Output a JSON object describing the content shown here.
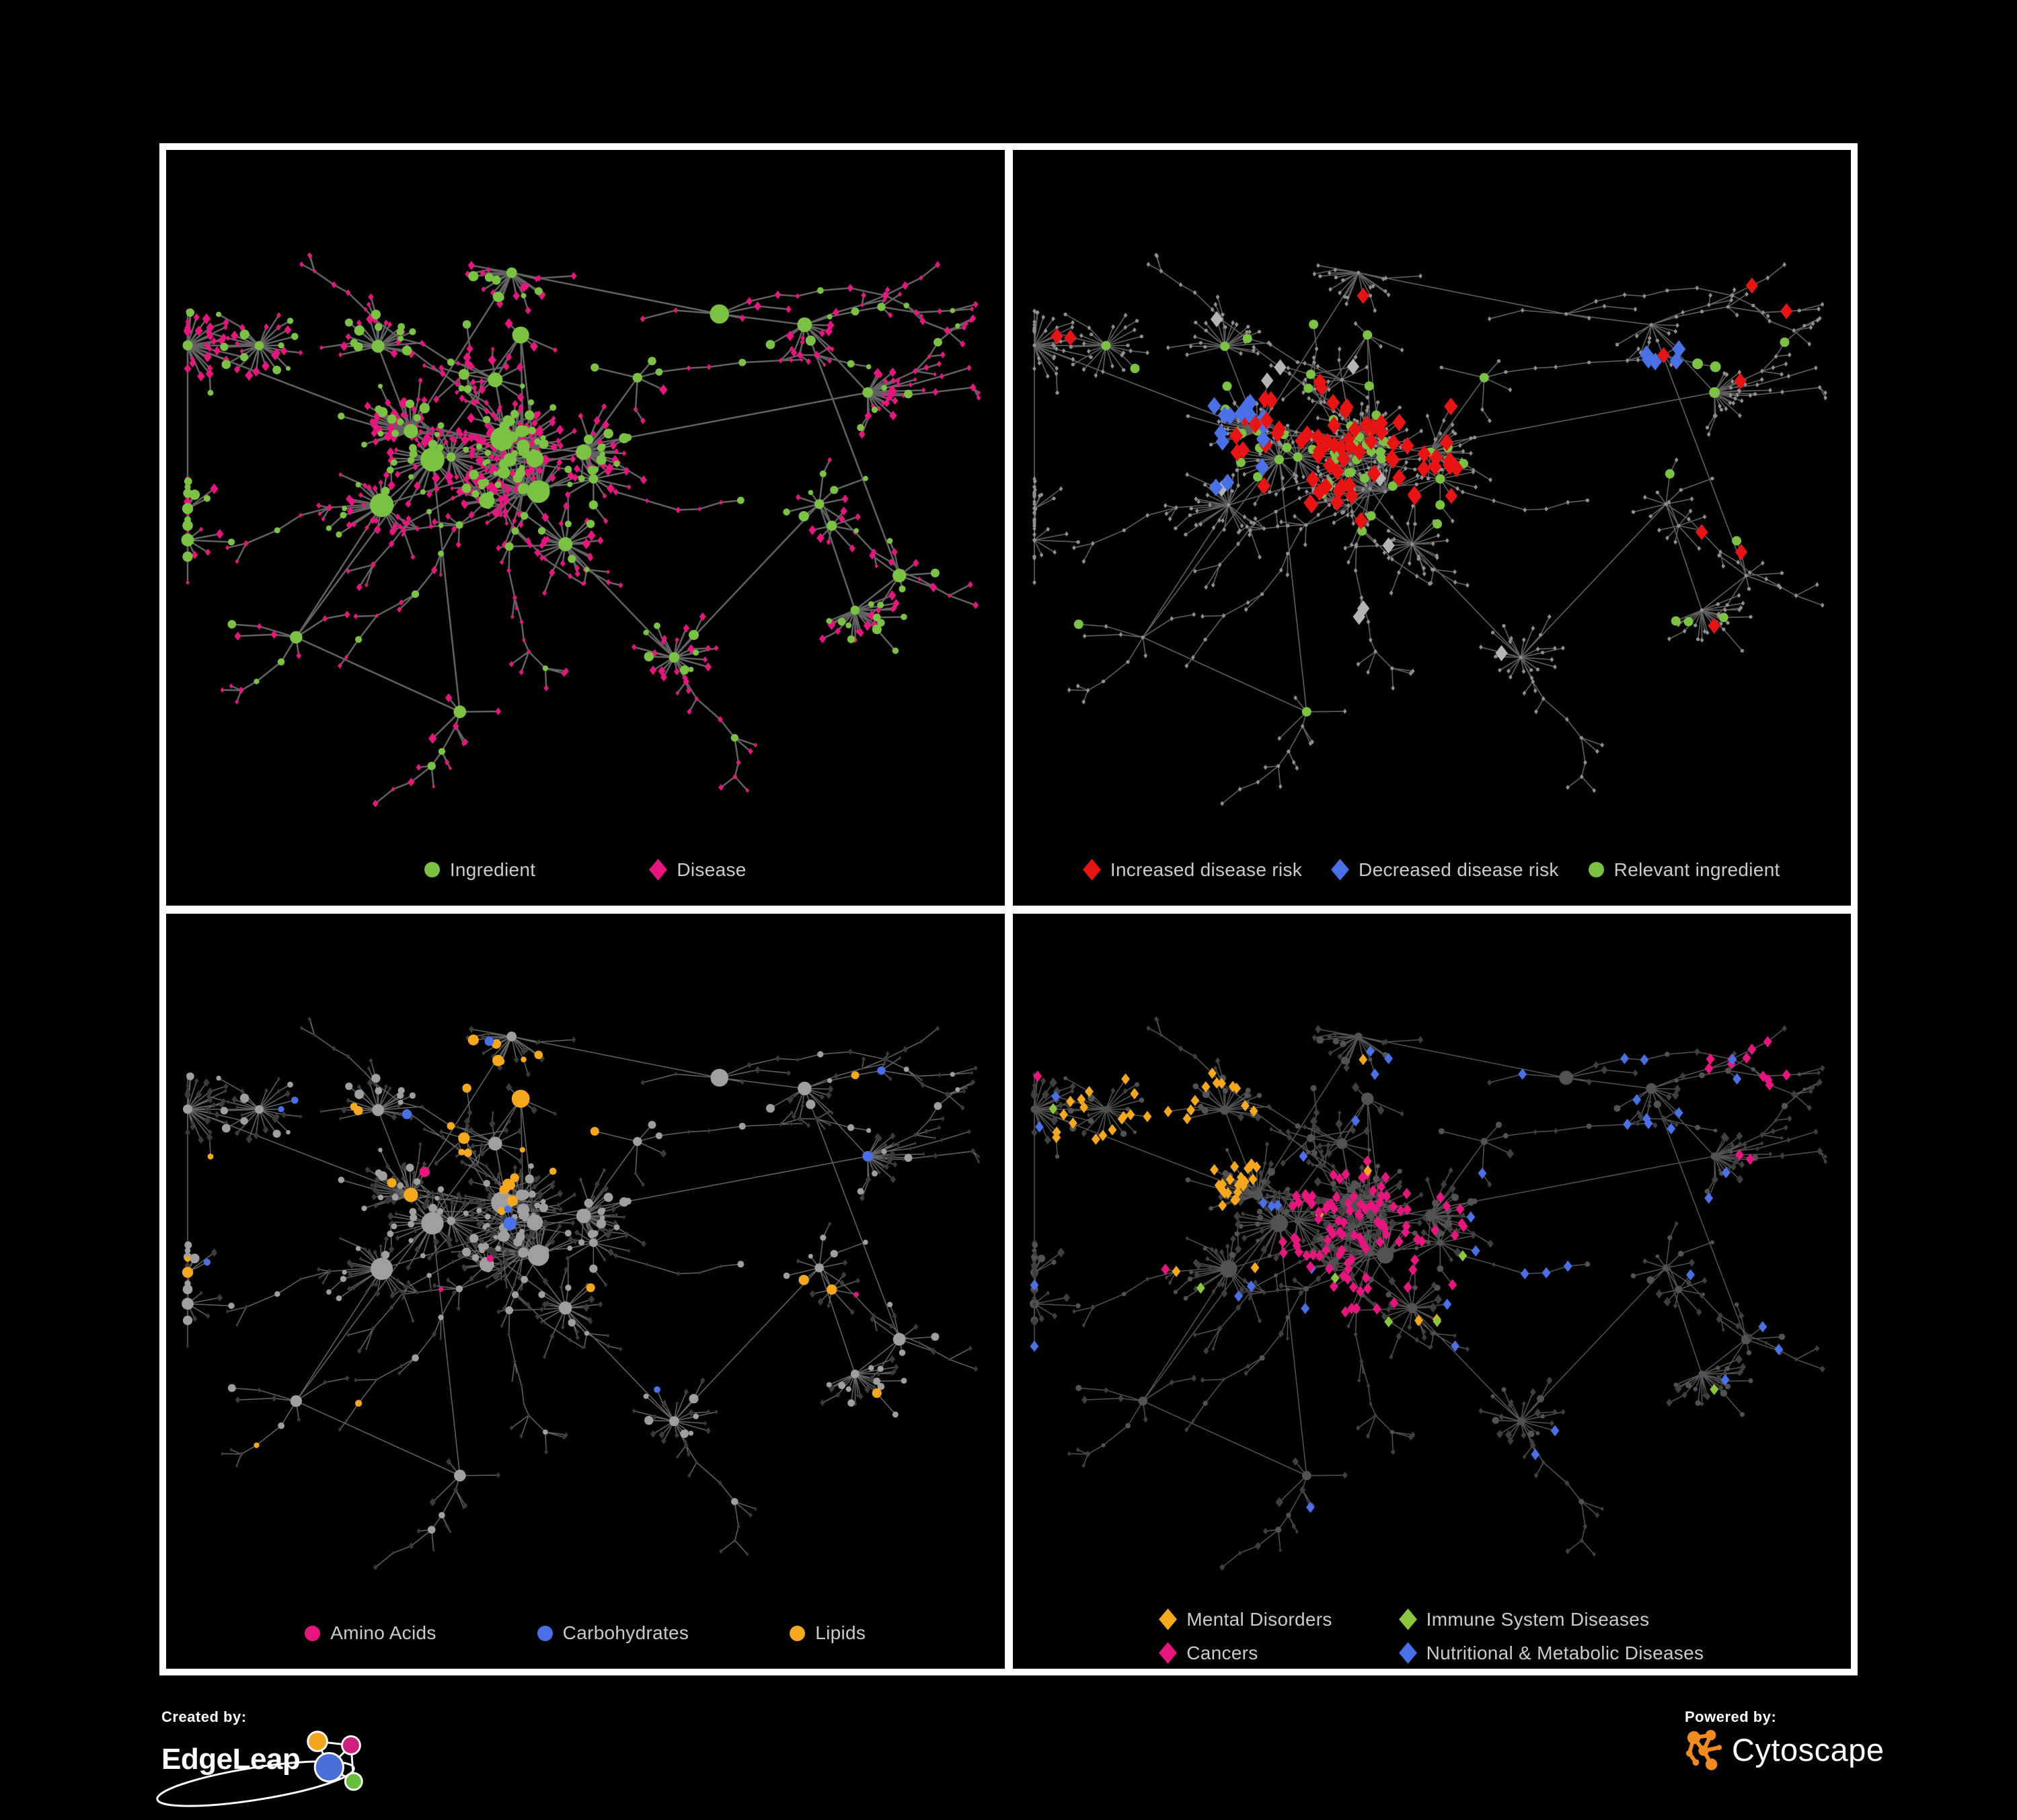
{
  "branding": {
    "created_by_label": "Created by:",
    "edgeleap_name": "EdgeLeap",
    "powered_by_label": "Powered by:",
    "cytoscape_name": "Cytoscape",
    "edgeleap_logo_colors": {
      "blue": "#4a6fd8",
      "orange": "#f2a71f",
      "pink": "#cf1f7e",
      "green": "#66bf3a"
    },
    "cytoscape_logo_color": "#ef8c1d"
  },
  "chart_data": {
    "type": "network",
    "title": "",
    "description": "Four coordinated views of the same food ingredient / disease association network rendered on a black background. Top-left: node types (green circle = Ingredient, pink diamond = Disease). Top-right: disease-risk overlay (red diamond = increased risk, blue diamond = decreased risk, gray diamond = neutral, green circle = relevant ingredient; all other nodes tiny gray). Bottom-left: nutrient classes of ingredients (pink = Amino Acids, blue = Carbohydrates, orange = Lipids, gray = other; diseases dark). Bottom-right: disease categories (orange = Mental Disorders, green = Immune System Diseases, pink = Cancers, blue = Nutritional & Metabolic Diseases; other nodes dark gray).",
    "background": "#000000",
    "node_count_estimate": 850,
    "layout": {
      "seed": 1337,
      "hubs": 40,
      "max_leaves": 24,
      "leaf_ingredient_prob": 0.24,
      "extra_hub_links": 10,
      "tendrils": 28
    },
    "panels": [
      {
        "name": "ingredient-disease-network",
        "legend_layout": "row",
        "legend_gap": 170,
        "legend": [
          {
            "label": "Ingredient",
            "shape": "circle",
            "color": "#7cc242"
          },
          {
            "label": "Disease",
            "shape": "diamond",
            "color": "#e9157e"
          }
        ],
        "edge_style": {
          "color": "#6b6b6b",
          "width": 2.5,
          "opacity": 0.92
        },
        "style_seed": 11,
        "node_rules": [
          {
            "type": "ingredient",
            "color": "#7cc242",
            "shape": "circle",
            "size": 7.5,
            "scaleBySize": true,
            "layer": 2
          },
          {
            "type": "disease",
            "color": "#e9157e",
            "shape": "diamond",
            "size": 6.5,
            "scaleBySize": true,
            "layer": 1
          }
        ]
      },
      {
        "name": "disease-risk-network",
        "legend_layout": "row",
        "legend_gap": 44,
        "legend": [
          {
            "label": "Increased disease risk",
            "shape": "diamond",
            "color": "#e81414"
          },
          {
            "label": "Decreased disease risk",
            "shape": "diamond",
            "color": "#4970e6"
          },
          {
            "label": "Relevant ingredient",
            "shape": "circle",
            "color": "#7cc242"
          }
        ],
        "edge_style": {
          "color": "#707070",
          "width": 1.6,
          "opacity": 0.85
        },
        "style_seed": 22,
        "node_rules": [
          {
            "type": "ingredient",
            "region": {
              "x": 0.81,
              "y": 0.33,
              "r": 0.05
            },
            "color": "#7cc242",
            "shape": "circle",
            "size": 8,
            "layer": 3
          },
          {
            "type": "disease",
            "region": {
              "x": 0.8,
              "y": 0.33,
              "r": 0.055
            },
            "prob": 0.5,
            "color": "#4970e6",
            "shape": "diamond",
            "size": 11,
            "layer": 3
          },
          {
            "type": "disease",
            "region": {
              "x": 0.22,
              "y": 0.42,
              "r": 0.08
            },
            "prob": 0.35,
            "color": "#4970e6",
            "shape": "diamond",
            "size": 11,
            "layer": 3
          },
          {
            "type": "disease",
            "region": {
              "x": 0.4,
              "y": 0.4,
              "r": 0.15
            },
            "prob": 0.3,
            "color": "#e81414",
            "shape": "diamond",
            "size": 11,
            "layer": 3
          },
          {
            "type": "disease",
            "region": {
              "x": 0.45,
              "y": 0.45,
              "r": 0.33
            },
            "prob": 0.025,
            "color": "#b5b5b5",
            "shape": "diamond",
            "size": 10,
            "layer": 2
          },
          {
            "type": "disease",
            "prob": 0.018,
            "color": "#e81414",
            "shape": "diamond",
            "size": 10,
            "layer": 3
          },
          {
            "type": "ingredient",
            "region": {
              "x": 0.38,
              "y": 0.4,
              "r": 0.2
            },
            "prob": 0.4,
            "color": "#7cc242",
            "shape": "circle",
            "size": 7,
            "layer": 2
          },
          {
            "type": "ingredient",
            "prob": 0.06,
            "color": "#7cc242",
            "shape": "circle",
            "size": 7,
            "layer": 2
          },
          {
            "type": "ingredient",
            "color": "#8f8f8f",
            "shape": "circle",
            "size": 2.7,
            "layer": 1
          },
          {
            "type": "disease",
            "color": "#8f8f8f",
            "shape": "diamond",
            "size": 3.1,
            "layer": 1
          }
        ]
      },
      {
        "name": "nutrient-class-network",
        "legend_layout": "row",
        "legend_gap": 150,
        "legend": [
          {
            "label": "Amino Acids",
            "shape": "circle",
            "color": "#e9157e"
          },
          {
            "label": "Carbohydrates",
            "shape": "circle",
            "color": "#4970e6"
          },
          {
            "label": "Lipids",
            "shape": "circle",
            "color": "#f5a81c"
          }
        ],
        "edge_style": {
          "color": "#9a9a9a",
          "width": 1.5,
          "opacity": 0.65
        },
        "style_seed": 33,
        "node_rules": [
          {
            "type": "disease",
            "color": "#3b3b3b",
            "shape": "diamond",
            "size": 5,
            "scaleBySize": true,
            "layer": 1
          },
          {
            "type": "ingredient",
            "region": {
              "x": 0.44,
              "y": 0.27,
              "r": 0.13
            },
            "prob": 0.75,
            "color": "#f5a81c",
            "shape": "circle",
            "size": 8,
            "scaleBySize": true,
            "layer": 3
          },
          {
            "type": "ingredient",
            "region": {
              "x": 0.44,
              "y": 0.27,
              "r": 0.13
            },
            "prob": 0.5,
            "color": "#4970e6",
            "shape": "circle",
            "size": 8,
            "scaleBySize": true,
            "layer": 3
          },
          {
            "type": "ingredient",
            "region": {
              "x": 0.55,
              "y": 0.55,
              "r": 0.05
            },
            "prob": 0.85,
            "color": "#f5a81c",
            "shape": "circle",
            "size": 8,
            "scaleBySize": true,
            "layer": 3
          },
          {
            "type": "ingredient",
            "prob": 0.1,
            "color": "#f5a81c",
            "shape": "circle",
            "size": 7.5,
            "scaleBySize": true,
            "layer": 3
          },
          {
            "type": "ingredient",
            "prob": 0.055,
            "color": "#e9157e",
            "shape": "circle",
            "size": 7.5,
            "scaleBySize": true,
            "layer": 3
          },
          {
            "type": "ingredient",
            "prob": 0.035,
            "color": "#4970e6",
            "shape": "circle",
            "size": 7.5,
            "scaleBySize": true,
            "layer": 3
          },
          {
            "type": "ingredient",
            "color": "#9f9f9f",
            "shape": "circle",
            "size": 7,
            "scaleBySize": true,
            "layer": 2
          }
        ]
      },
      {
        "name": "disease-category-network",
        "legend_layout": "grid",
        "legend_col_gap": 100,
        "legend_row_gap": 18,
        "legend": [
          {
            "label": "Mental Disorders",
            "shape": "diamond",
            "color": "#f5a81c"
          },
          {
            "label": "Immune System Diseases",
            "shape": "diamond",
            "color": "#8cc63e"
          },
          {
            "label": "Cancers",
            "shape": "diamond",
            "color": "#e9157e"
          },
          {
            "label": "Nutritional & Metabolic Diseases",
            "shape": "diamond",
            "color": "#4970e6"
          }
        ],
        "edge_style": {
          "color": "#8a8a8a",
          "width": 1.5,
          "opacity": 0.6
        },
        "style_seed": 44,
        "node_rules": [
          {
            "type": "disease",
            "region": {
              "x": 0.16,
              "y": 0.33,
              "r": 0.13
            },
            "prob": 0.8,
            "color": "#f5a81c",
            "shape": "diamond",
            "size": 7,
            "layer": 2
          },
          {
            "type": "disease",
            "region": {
              "x": 0.43,
              "y": 0.47,
              "r": 0.12
            },
            "prob": 0.45,
            "color": "#e9157e",
            "shape": "diamond",
            "size": 7,
            "layer": 2
          },
          {
            "type": "disease",
            "region": {
              "x": 0.9,
              "y": 0.2,
              "r": 0.06
            },
            "prob": 0.7,
            "color": "#e9157e",
            "shape": "diamond",
            "size": 7,
            "layer": 2
          },
          {
            "type": "disease",
            "region": {
              "x": 0.6,
              "y": 0.56,
              "r": 0.09
            },
            "prob": 0.6,
            "color": "#4970e6",
            "shape": "diamond",
            "size": 7,
            "layer": 2
          },
          {
            "type": "disease",
            "region": {
              "x": 0.76,
              "y": 0.28,
              "r": 0.1
            },
            "prob": 0.35,
            "color": "#4970e6",
            "shape": "diamond",
            "size": 7,
            "layer": 2
          },
          {
            "type": "disease",
            "prob": 0.055,
            "color": "#4970e6",
            "shape": "diamond",
            "size": 7,
            "layer": 2
          },
          {
            "type": "disease",
            "prob": 0.022,
            "color": "#f5a81c",
            "shape": "diamond",
            "size": 7,
            "layer": 2
          },
          {
            "type": "disease",
            "prob": 0.02,
            "color": "#e9157e",
            "shape": "diamond",
            "size": 7,
            "layer": 2
          },
          {
            "type": "disease",
            "prob": 0.014,
            "color": "#8cc63e",
            "shape": "diamond",
            "size": 7,
            "layer": 2
          },
          {
            "type": "disease",
            "color": "#3f3f3f",
            "shape": "diamond",
            "size": 6,
            "scaleBySize": true,
            "layer": 1
          },
          {
            "type": "ingredient",
            "color": "#525252",
            "shape": "circle",
            "size": 5.5,
            "scaleBySize": true,
            "layer": 1
          }
        ]
      }
    ]
  }
}
